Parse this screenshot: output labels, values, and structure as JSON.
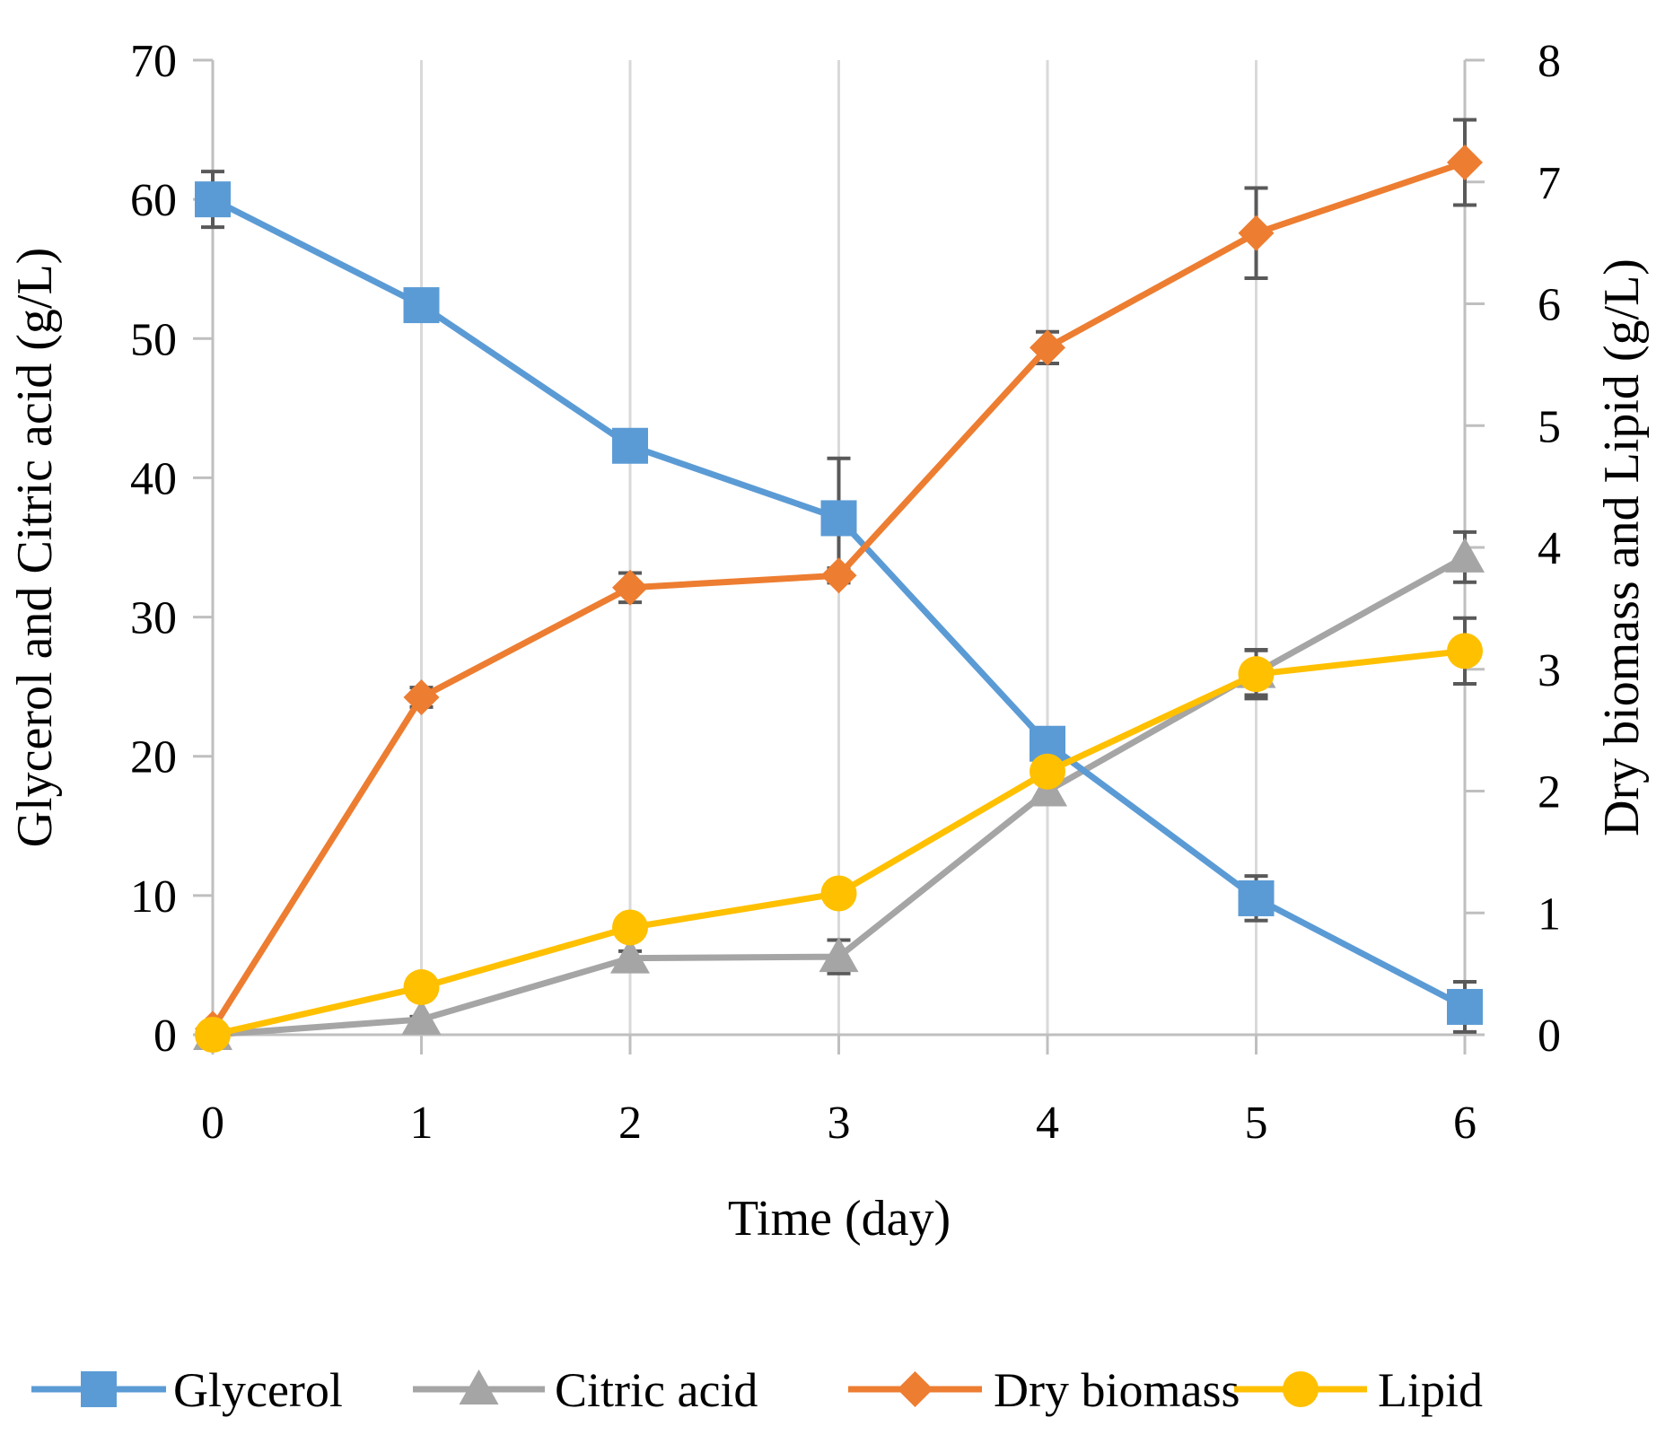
{
  "chart_data": {
    "type": "line",
    "title": "",
    "x": [
      0,
      1,
      2,
      3,
      4,
      5,
      6
    ],
    "xlabel": "Time (day)",
    "xlim": [
      0,
      6
    ],
    "x_ticks": [
      "0",
      "1",
      "2",
      "3",
      "4",
      "5",
      "6"
    ],
    "ylabel_left": "Glycerol and Citric acid (g/L)",
    "ylim_left": [
      0,
      70
    ],
    "y_ticks_left": [
      "0",
      "10",
      "20",
      "30",
      "40",
      "50",
      "60",
      "70"
    ],
    "ylabel_right": "Dry biomass and Lipid (g/L)",
    "ylim_right": [
      0,
      8
    ],
    "y_ticks_right": [
      "0",
      "1",
      "2",
      "3",
      "4",
      "5",
      "6",
      "7",
      "8"
    ],
    "grid": "vertical",
    "legend_position": "bottom",
    "series": [
      {
        "name": "Glycerol",
        "axis": "left",
        "marker": "square",
        "color": "#5B9BD5",
        "values": [
          60.0,
          52.4,
          42.3,
          37.1,
          20.9,
          9.8,
          2.0
        ],
        "error": [
          2.0,
          0.8,
          0.6,
          4.3,
          0.8,
          1.6,
          1.8
        ]
      },
      {
        "name": "Citric acid",
        "axis": "left",
        "marker": "triangle",
        "color": "#A5A5A5",
        "values": [
          0.0,
          1.1,
          5.5,
          5.6,
          17.5,
          26.0,
          34.3
        ],
        "error": [
          0.0,
          0.2,
          0.5,
          1.2,
          0.8,
          1.6,
          1.8
        ]
      },
      {
        "name": "Dry biomass",
        "axis": "right",
        "marker": "diamond",
        "color": "#ED7D31",
        "values": [
          0.05,
          2.77,
          3.67,
          3.77,
          5.64,
          6.58,
          7.16
        ],
        "error": [
          0.0,
          0.08,
          0.12,
          0.06,
          0.13,
          0.37,
          0.35
        ]
      },
      {
        "name": "Lipid",
        "axis": "right",
        "marker": "circle",
        "color": "#FFC000",
        "values": [
          0.0,
          0.39,
          0.88,
          1.16,
          2.16,
          2.96,
          3.15
        ],
        "error": [
          0.0,
          0.0,
          0.0,
          0.0,
          0.0,
          0.2,
          0.27
        ]
      }
    ]
  }
}
